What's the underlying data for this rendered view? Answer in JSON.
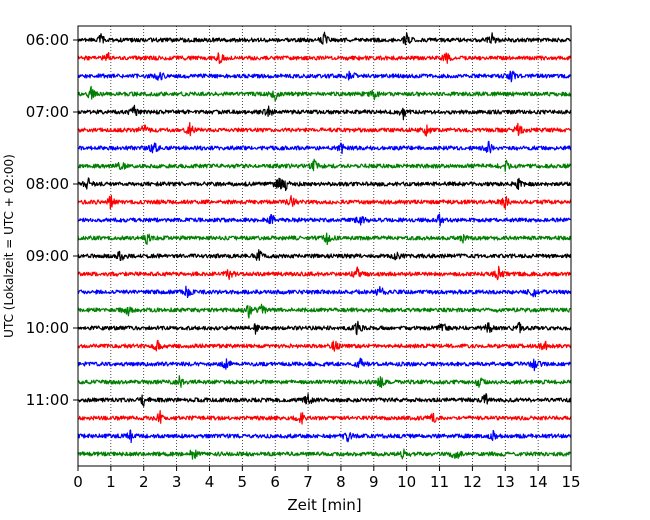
{
  "chart_data": {
    "type": "line",
    "title": "",
    "xlabel": "Zeit  [min]",
    "ylabel": "UTC (Lokalzeit = UTC + 02:00)",
    "xlim": [
      0,
      15
    ],
    "x_ticks": [
      "0",
      "1",
      "2",
      "3",
      "4",
      "5",
      "6",
      "7",
      "8",
      "9",
      "10",
      "11",
      "12",
      "13",
      "14",
      "15"
    ],
    "y_ticks": [
      "06:00",
      "07:00",
      "08:00",
      "09:00",
      "10:00",
      "11:00"
    ],
    "grid": "vertical dotted at each minute",
    "trace_interval_min": 15,
    "colors_cycle": [
      "#000000",
      "#ff0000",
      "#0000ff",
      "#008000"
    ],
    "series": [
      {
        "start": "06:00",
        "color": "#000000",
        "events_min": [
          0.7,
          7.5,
          10.0,
          12.6
        ]
      },
      {
        "start": "06:15",
        "color": "#ff0000",
        "events_min": [
          0.9,
          4.3,
          11.2
        ]
      },
      {
        "start": "06:30",
        "color": "#0000ff",
        "events_min": [
          2.5,
          8.3,
          13.2
        ]
      },
      {
        "start": "06:45",
        "color": "#008000",
        "events_min": [
          0.4,
          6.0,
          9.0
        ]
      },
      {
        "start": "07:00",
        "color": "#000000",
        "events_min": [
          1.7,
          5.8,
          9.9
        ]
      },
      {
        "start": "07:15",
        "color": "#ff0000",
        "events_min": [
          2.0,
          3.4,
          10.6,
          13.4
        ]
      },
      {
        "start": "07:30",
        "color": "#0000ff",
        "events_min": [
          2.3,
          8.0,
          12.5
        ]
      },
      {
        "start": "07:45",
        "color": "#008000",
        "events_min": [
          1.3,
          7.2,
          13.0
        ]
      },
      {
        "start": "08:00",
        "color": "#000000",
        "events_min": [
          0.3,
          6.1,
          6.3,
          13.4
        ]
      },
      {
        "start": "08:15",
        "color": "#ff0000",
        "events_min": [
          1.0,
          6.5,
          13.0
        ]
      },
      {
        "start": "08:30",
        "color": "#0000ff",
        "events_min": [
          5.9,
          8.6,
          11.0
        ]
      },
      {
        "start": "08:45",
        "color": "#008000",
        "events_min": [
          2.1,
          7.6,
          11.7
        ]
      },
      {
        "start": "09:00",
        "color": "#000000",
        "events_min": [
          1.3,
          5.5,
          9.7
        ]
      },
      {
        "start": "09:15",
        "color": "#ff0000",
        "events_min": [
          4.6,
          8.5,
          12.8
        ]
      },
      {
        "start": "09:30",
        "color": "#0000ff",
        "events_min": [
          3.3,
          9.2,
          13.9
        ]
      },
      {
        "start": "09:45",
        "color": "#008000",
        "events_min": [
          1.5,
          5.2,
          5.6
        ]
      },
      {
        "start": "10:00",
        "color": "#000000",
        "events_min": [
          5.4,
          8.5,
          11.1,
          12.5,
          13.4
        ]
      },
      {
        "start": "10:15",
        "color": "#ff0000",
        "events_min": [
          2.4,
          7.8,
          14.2
        ]
      },
      {
        "start": "10:30",
        "color": "#0000ff",
        "events_min": [
          4.5,
          8.6,
          13.9
        ]
      },
      {
        "start": "10:45",
        "color": "#008000",
        "events_min": [
          3.1,
          9.2,
          12.2
        ]
      },
      {
        "start": "11:00",
        "color": "#000000",
        "events_min": [
          2.0,
          7.0,
          12.4
        ]
      },
      {
        "start": "11:15",
        "color": "#ff0000",
        "events_min": [
          2.5,
          6.8,
          10.8
        ]
      },
      {
        "start": "11:30",
        "color": "#0000ff",
        "events_min": [
          1.6,
          8.2,
          12.6
        ]
      },
      {
        "start": "11:45",
        "color": "#008000",
        "events_min": [
          3.5,
          9.9,
          11.5
        ]
      }
    ]
  }
}
